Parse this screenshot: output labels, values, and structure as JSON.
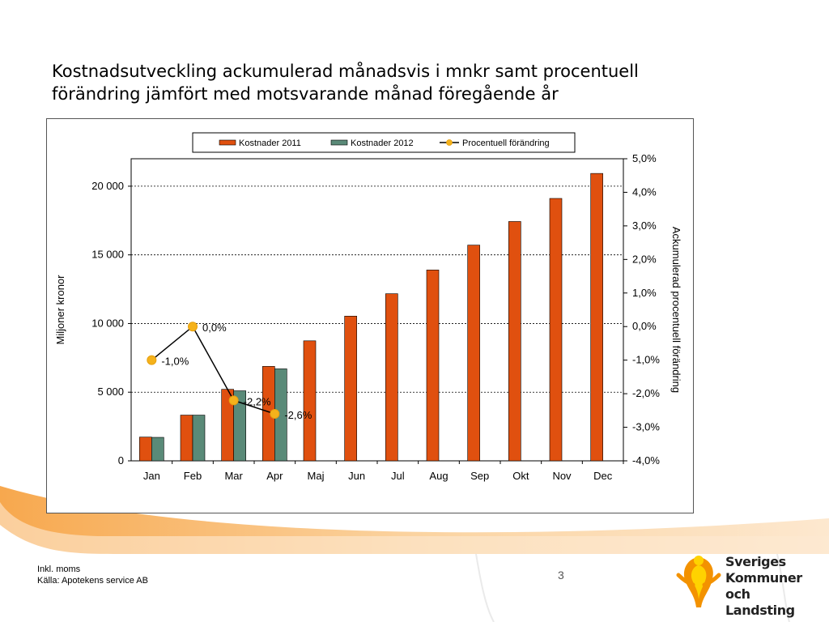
{
  "slide": {
    "title": "Kostnadsutveckling ackumulerad månadsvis i mnkr samt procentuell förändring jämfört med motsvarande månad föregående år",
    "footer_lines": [
      "Inkl. moms",
      "Källa: Apotekens service  AB"
    ],
    "page_number": "3",
    "logo_lines": [
      "Sveriges",
      "Kommuner",
      "och Landsting"
    ],
    "colors": {
      "background_orange": "#f5a34a",
      "background_pale": "#fde3c0",
      "logo_orange": "#f39200",
      "logo_yellow": "#ffd200"
    }
  },
  "chart_data": {
    "type": "bar",
    "xlabel": "",
    "ylabel": "Miljoner kronor",
    "y2label": "Ackumulerad procentuell förändring",
    "categories": [
      "Jan",
      "Feb",
      "Mar",
      "Apr",
      "Maj",
      "Jun",
      "Jul",
      "Aug",
      "Sep",
      "Okt",
      "Nov",
      "Dec"
    ],
    "ylim": [
      0,
      22000
    ],
    "yticks": [
      0,
      5000,
      10000,
      15000,
      20000
    ],
    "ytick_labels": [
      "0",
      "5 000",
      "10 000",
      "15 000",
      "20 000"
    ],
    "y2lim": [
      -4.0,
      5.0
    ],
    "y2ticks": [
      -4,
      -3,
      -2,
      -1,
      0,
      1,
      2,
      3,
      4,
      5
    ],
    "y2tick_labels": [
      "-4,0%",
      "-3,0%",
      "-2,0%",
      "-1,0%",
      "0,0%",
      "1,0%",
      "2,0%",
      "3,0%",
      "4,0%",
      "5,0%"
    ],
    "grid": "horizontal dashed at y ticks",
    "legend": {
      "position": "top",
      "entries": [
        "Kostnader 2011",
        "Kostnader 2012",
        "Procentuell förändring"
      ]
    },
    "series": [
      {
        "name": "Kostnader 2011",
        "type": "bar",
        "color": "#e0500f",
        "values": [
          1730,
          3330,
          5210,
          6880,
          8740,
          10540,
          12170,
          13900,
          15710,
          17430,
          19110,
          20930
        ]
      },
      {
        "name": "Kostnader 2012",
        "type": "bar",
        "color": "#5a8a78",
        "values": [
          1710,
          3330,
          5100,
          6700,
          null,
          null,
          null,
          null,
          null,
          null,
          null,
          null
        ]
      },
      {
        "name": "Procentuell förändring",
        "type": "line",
        "axis": "right",
        "color": "#000000",
        "marker_color": "#f5b21b",
        "values": [
          -1.0,
          0.0,
          -2.2,
          -2.6,
          null,
          null,
          null,
          null,
          null,
          null,
          null,
          null
        ],
        "labels": [
          "-1,0%",
          "0,0%",
          "-2,2%",
          "-2,6%",
          null,
          null,
          null,
          null,
          null,
          null,
          null,
          null
        ]
      }
    ]
  }
}
